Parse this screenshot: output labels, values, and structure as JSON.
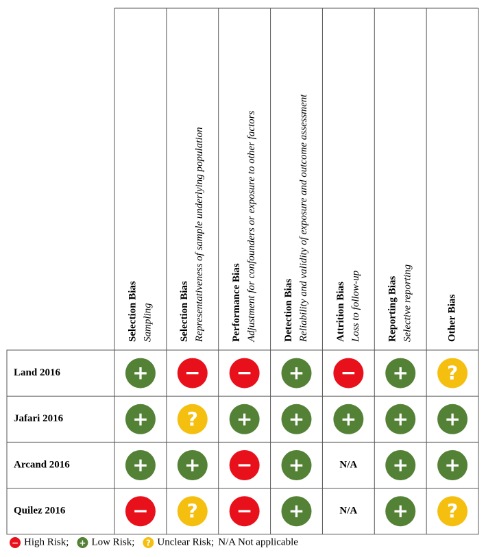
{
  "table": {
    "columns": [
      {
        "title": "Selection Bias",
        "subtitle": "Sampling"
      },
      {
        "title": "Selection Bias",
        "subtitle": "Representativeness of sample underlying population"
      },
      {
        "title": "Performance Bias",
        "subtitle": "Adjustment for confounders or exposure to other factors"
      },
      {
        "title": "Detection Bias",
        "subtitle": "Reliability and validity of exposure and outcome assessment"
      },
      {
        "title": "Attrition Bias",
        "subtitle": "Loss to follow-up"
      },
      {
        "title": "Reporting Bias",
        "subtitle": "Selective reporting"
      },
      {
        "title": "Other Bias"
      }
    ],
    "rows": [
      {
        "name": "Land 2016",
        "cells": [
          "+",
          "−",
          "−",
          "+",
          "−",
          "+",
          "?"
        ]
      },
      {
        "name": "Jafari 2016",
        "cells": [
          "+",
          "?",
          "+",
          "+",
          "+",
          "+",
          "+"
        ]
      },
      {
        "name": "Arcand 2016",
        "cells": [
          "+",
          "+",
          "−",
          "+",
          "N/A",
          "+",
          "+"
        ]
      },
      {
        "name": "Quilez 2016",
        "cells": [
          "−",
          "?",
          "−",
          "+",
          "N/A",
          "+",
          "?"
        ]
      }
    ]
  },
  "legend": {
    "items": [
      {
        "symbol": "−",
        "label": "High Risk;",
        "color": "#e8101a"
      },
      {
        "symbol": "+",
        "label": "Low Risk;",
        "color": "#538135"
      },
      {
        "symbol": "?",
        "label": "Unclear Risk;",
        "color": "#f5bf10"
      }
    ],
    "note": "N/A Not applicable"
  }
}
